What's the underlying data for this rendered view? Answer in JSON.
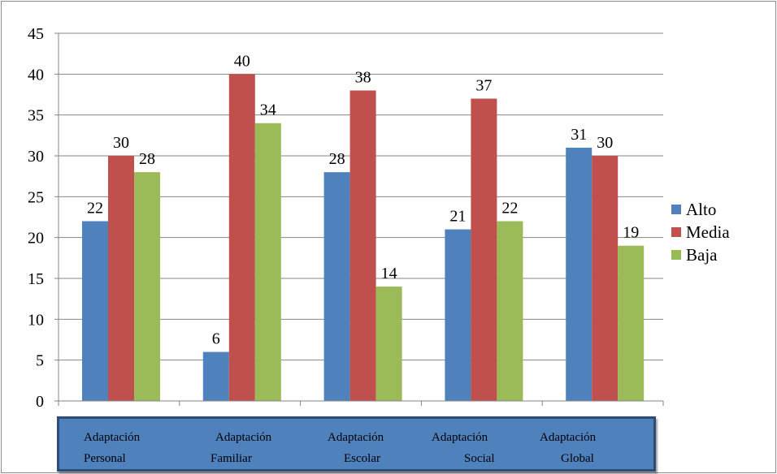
{
  "chart_data": {
    "type": "bar",
    "title": "",
    "xlabel": "",
    "ylabel": "",
    "ylim": [
      0,
      45
    ],
    "yticks": [
      0,
      5,
      10,
      15,
      20,
      25,
      30,
      35,
      40,
      45
    ],
    "grid": true,
    "legend_position": "right",
    "categories": [
      {
        "line1": "Adaptación",
        "line2": "Personal"
      },
      {
        "line1": "Adaptación",
        "line2": "Familiar"
      },
      {
        "line1": "Adaptación",
        "line2": "Escolar"
      },
      {
        "line1": "Adaptación",
        "line2": "Social"
      },
      {
        "line1": "Adaptación",
        "line2": "Global"
      }
    ],
    "series": [
      {
        "name": "Alto",
        "color": "#4f81bd",
        "values": [
          22,
          6,
          28,
          21,
          31
        ]
      },
      {
        "name": "Media",
        "color": "#c0504d",
        "values": [
          30,
          40,
          38,
          37,
          30
        ]
      },
      {
        "name": "Baja",
        "color": "#9bbb59",
        "values": [
          28,
          34,
          14,
          22,
          19
        ]
      }
    ],
    "category_box_color": "#4f81bd"
  }
}
